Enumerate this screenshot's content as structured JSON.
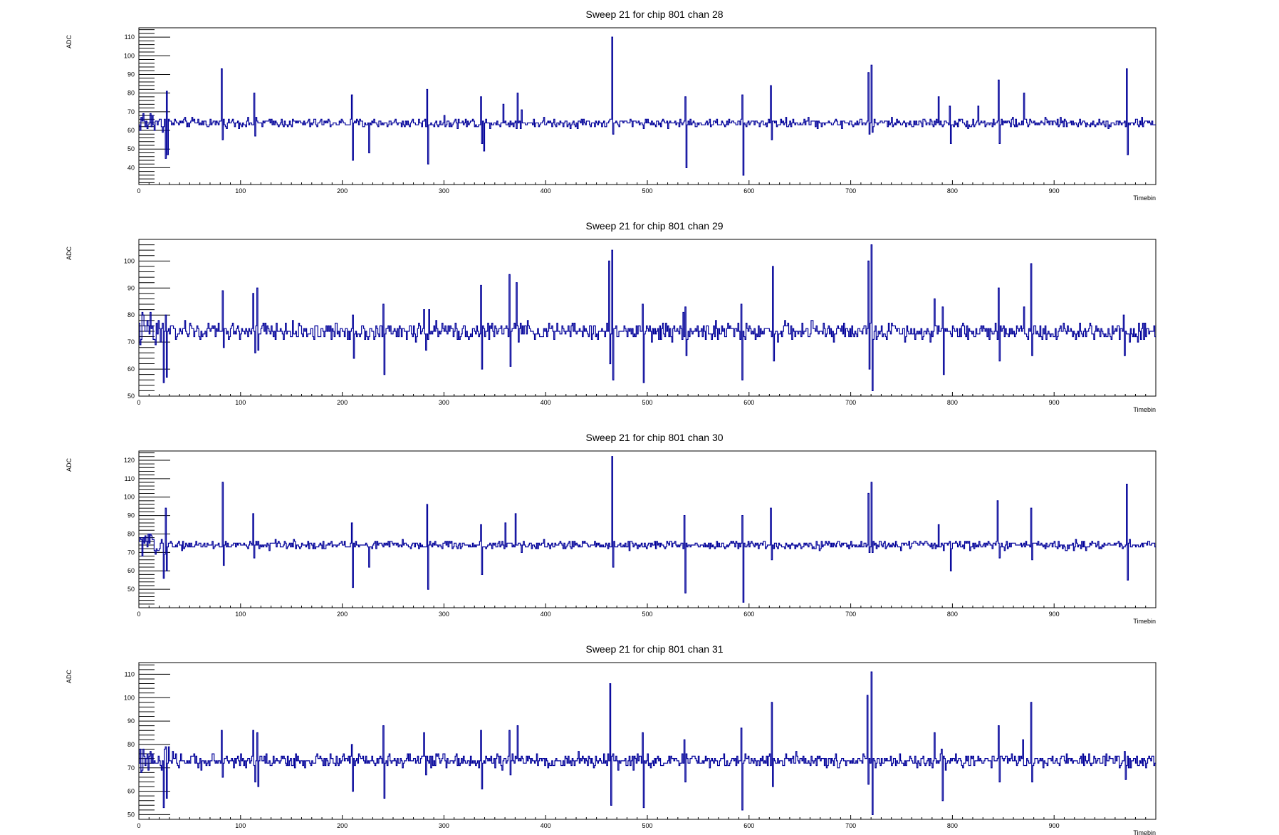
{
  "chart_data": [
    {
      "type": "line",
      "title": "Sweep 21 for chip 801 chan 28",
      "xlabel": "Timebin",
      "ylabel": "ADC",
      "xlim": [
        0,
        1000
      ],
      "ylim": [
        31,
        115
      ],
      "x_ticks": [
        0,
        100,
        200,
        300,
        400,
        500,
        600,
        700,
        800,
        900
      ],
      "y_ticks": [
        40,
        50,
        60,
        70,
        80,
        90,
        100,
        110
      ],
      "baseline": 64,
      "noise": 1.5,
      "series": [
        {
          "color": "#000099",
          "spikes": [
            [
              24,
              62
            ],
            [
              26,
              45
            ],
            [
              27,
              81
            ],
            [
              28,
              47
            ],
            [
              29,
              66
            ],
            [
              81,
              93
            ],
            [
              82,
              55
            ],
            [
              113,
              80
            ],
            [
              114,
              57
            ],
            [
              209,
              79
            ],
            [
              210,
              44
            ],
            [
              226,
              48
            ],
            [
              283,
              82
            ],
            [
              284,
              42
            ],
            [
              336,
              78
            ],
            [
              337,
              53
            ],
            [
              339,
              49
            ],
            [
              358,
              74
            ],
            [
              372,
              80
            ],
            [
              376,
              71
            ],
            [
              465,
              110
            ],
            [
              466,
              58
            ],
            [
              537,
              78
            ],
            [
              538,
              40
            ],
            [
              593,
              79
            ],
            [
              594,
              36
            ],
            [
              621,
              84
            ],
            [
              622,
              55
            ],
            [
              717,
              91
            ],
            [
              718,
              58
            ],
            [
              720,
              95
            ],
            [
              721,
              59
            ],
            [
              786,
              78
            ],
            [
              797,
              73
            ],
            [
              798,
              53
            ],
            [
              825,
              73
            ],
            [
              845,
              87
            ],
            [
              846,
              53
            ],
            [
              870,
              80
            ],
            [
              971,
              93
            ],
            [
              972,
              47
            ]
          ]
        }
      ]
    },
    {
      "type": "line",
      "title": "Sweep 21 for chip 801 chan 29",
      "xlabel": "Timebin",
      "ylabel": "ADC",
      "xlim": [
        0,
        1000
      ],
      "ylim": [
        50,
        108
      ],
      "x_ticks": [
        0,
        100,
        200,
        300,
        400,
        500,
        600,
        700,
        800,
        900
      ],
      "y_ticks": [
        50,
        60,
        70,
        80,
        90,
        100
      ],
      "baseline": 74,
      "noise": 2,
      "series": [
        {
          "color": "#000099",
          "spikes": [
            [
              24,
              55
            ],
            [
              26,
              80
            ],
            [
              27,
              57
            ],
            [
              82,
              89
            ],
            [
              83,
              68
            ],
            [
              112,
              88
            ],
            [
              114,
              66
            ],
            [
              116,
              90
            ],
            [
              117,
              67
            ],
            [
              210,
              80
            ],
            [
              211,
              64
            ],
            [
              240,
              84
            ],
            [
              241,
              58
            ],
            [
              280,
              82
            ],
            [
              282,
              67
            ],
            [
              285,
              82
            ],
            [
              336,
              91
            ],
            [
              337,
              60
            ],
            [
              364,
              95
            ],
            [
              365,
              61
            ],
            [
              371,
              92
            ],
            [
              462,
              100
            ],
            [
              463,
              62
            ],
            [
              465,
              104
            ],
            [
              466,
              56
            ],
            [
              495,
              84
            ],
            [
              496,
              55
            ],
            [
              535,
              81
            ],
            [
              537,
              83
            ],
            [
              538,
              65
            ],
            [
              592,
              84
            ],
            [
              593,
              56
            ],
            [
              623,
              98
            ],
            [
              624,
              63
            ],
            [
              717,
              100
            ],
            [
              718,
              60
            ],
            [
              720,
              106
            ],
            [
              721,
              52
            ],
            [
              782,
              86
            ],
            [
              790,
              83
            ],
            [
              791,
              58
            ],
            [
              845,
              90
            ],
            [
              846,
              63
            ],
            [
              870,
              83
            ],
            [
              877,
              99
            ],
            [
              878,
              65
            ],
            [
              968,
              80
            ],
            [
              969,
              65
            ]
          ]
        }
      ]
    },
    {
      "type": "line",
      "title": "Sweep 21 for chip 801 chan 30",
      "xlabel": "Timebin",
      "ylabel": "ADC",
      "xlim": [
        0,
        1000
      ],
      "ylim": [
        40,
        125
      ],
      "x_ticks": [
        0,
        100,
        200,
        300,
        400,
        500,
        600,
        700,
        800,
        900
      ],
      "y_ticks": [
        50,
        60,
        70,
        80,
        90,
        100,
        110,
        120
      ],
      "baseline": 74,
      "noise": 1.5,
      "series": [
        {
          "color": "#000099",
          "spikes": [
            [
              24,
              56
            ],
            [
              26,
              94
            ],
            [
              27,
              60
            ],
            [
              82,
              108
            ],
            [
              83,
              63
            ],
            [
              112,
              91
            ],
            [
              113,
              67
            ],
            [
              209,
              86
            ],
            [
              210,
              51
            ],
            [
              226,
              62
            ],
            [
              283,
              96
            ],
            [
              284,
              50
            ],
            [
              336,
              85
            ],
            [
              337,
              58
            ],
            [
              360,
              86
            ],
            [
              370,
              91
            ],
            [
              376,
              70
            ],
            [
              465,
              122
            ],
            [
              466,
              62
            ],
            [
              536,
              90
            ],
            [
              537,
              48
            ],
            [
              593,
              90
            ],
            [
              594,
              43
            ],
            [
              621,
              94
            ],
            [
              622,
              66
            ],
            [
              717,
              102
            ],
            [
              718,
              70
            ],
            [
              720,
              108
            ],
            [
              721,
              70
            ],
            [
              786,
              85
            ],
            [
              797,
              76
            ],
            [
              798,
              60
            ],
            [
              844,
              98
            ],
            [
              846,
              67
            ],
            [
              877,
              94
            ],
            [
              878,
              66
            ],
            [
              971,
              107
            ],
            [
              972,
              55
            ]
          ]
        }
      ]
    },
    {
      "type": "line",
      "title": "Sweep 21 for chip 801 chan 31",
      "xlabel": "Timebin",
      "ylabel": "ADC",
      "xlim": [
        0,
        1000
      ],
      "ylim": [
        48,
        115
      ],
      "x_ticks": [
        0,
        100,
        200,
        300,
        400,
        500,
        600,
        700,
        800,
        900
      ],
      "y_ticks": [
        50,
        60,
        70,
        80,
        90,
        100,
        110
      ],
      "baseline": 73,
      "noise": 1.8,
      "series": [
        {
          "color": "#000099",
          "spikes": [
            [
              24,
              53
            ],
            [
              26,
              79
            ],
            [
              27,
              57
            ],
            [
              81,
              86
            ],
            [
              82,
              66
            ],
            [
              112,
              86
            ],
            [
              114,
              64
            ],
            [
              116,
              85
            ],
            [
              117,
              62
            ],
            [
              209,
              80
            ],
            [
              210,
              60
            ],
            [
              240,
              88
            ],
            [
              241,
              57
            ],
            [
              280,
              85
            ],
            [
              282,
              67
            ],
            [
              336,
              86
            ],
            [
              337,
              61
            ],
            [
              364,
              86
            ],
            [
              365,
              67
            ],
            [
              372,
              88
            ],
            [
              463,
              106
            ],
            [
              464,
              54
            ],
            [
              495,
              85
            ],
            [
              496,
              53
            ],
            [
              536,
              82
            ],
            [
              537,
              64
            ],
            [
              592,
              87
            ],
            [
              593,
              52
            ],
            [
              622,
              98
            ],
            [
              623,
              62
            ],
            [
              716,
              101
            ],
            [
              717,
              63
            ],
            [
              720,
              111
            ],
            [
              721,
              50
            ],
            [
              782,
              85
            ],
            [
              789,
              78
            ],
            [
              790,
              56
            ],
            [
              845,
              88
            ],
            [
              846,
              64
            ],
            [
              869,
              82
            ],
            [
              877,
              98
            ],
            [
              878,
              64
            ],
            [
              969,
              77
            ],
            [
              970,
              65
            ]
          ]
        }
      ]
    }
  ]
}
